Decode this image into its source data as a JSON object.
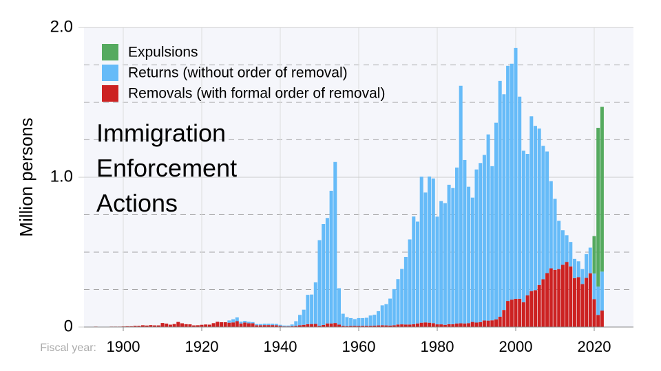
{
  "chart_data": {
    "type": "stacked_bar",
    "title": "Immigration Enforcement Actions",
    "y_label": "Million persons",
    "x_label": "Fiscal year:",
    "x": [
      1892,
      1893,
      1894,
      1895,
      1896,
      1897,
      1898,
      1899,
      1900,
      1901,
      1902,
      1903,
      1904,
      1905,
      1906,
      1907,
      1908,
      1909,
      1910,
      1911,
      1912,
      1913,
      1914,
      1915,
      1916,
      1917,
      1918,
      1919,
      1920,
      1921,
      1922,
      1923,
      1924,
      1925,
      1926,
      1927,
      1928,
      1929,
      1930,
      1931,
      1932,
      1933,
      1934,
      1935,
      1936,
      1937,
      1938,
      1939,
      1940,
      1941,
      1942,
      1943,
      1944,
      1945,
      1946,
      1947,
      1948,
      1949,
      1950,
      1951,
      1952,
      1953,
      1954,
      1955,
      1956,
      1957,
      1958,
      1959,
      1960,
      1961,
      1962,
      1963,
      1964,
      1965,
      1966,
      1967,
      1968,
      1969,
      1970,
      1971,
      1972,
      1973,
      1974,
      1975,
      1976,
      1977,
      1978,
      1979,
      1980,
      1981,
      1982,
      1983,
      1984,
      1985,
      1986,
      1987,
      1988,
      1989,
      1990,
      1991,
      1992,
      1993,
      1994,
      1995,
      1996,
      1997,
      1998,
      1999,
      2000,
      2001,
      2002,
      2003,
      2004,
      2005,
      2006,
      2007,
      2008,
      2009,
      2010,
      2011,
      2012,
      2013,
      2014,
      2015,
      2016,
      2017,
      2018,
      2019,
      2020,
      2021,
      2022
    ],
    "series": [
      {
        "name": "Expulsions",
        "color": "#55aa5f",
        "values": [
          null,
          null,
          null,
          null,
          null,
          null,
          null,
          null,
          null,
          null,
          null,
          null,
          null,
          null,
          null,
          null,
          null,
          null,
          null,
          null,
          null,
          null,
          null,
          null,
          null,
          null,
          null,
          null,
          null,
          null,
          null,
          null,
          null,
          null,
          null,
          null,
          null,
          null,
          null,
          null,
          null,
          null,
          null,
          null,
          null,
          null,
          null,
          null,
          null,
          null,
          null,
          null,
          null,
          null,
          null,
          null,
          null,
          null,
          null,
          null,
          null,
          null,
          null,
          null,
          null,
          null,
          null,
          null,
          null,
          null,
          null,
          null,
          null,
          null,
          null,
          null,
          null,
          null,
          null,
          null,
          null,
          null,
          null,
          null,
          null,
          null,
          null,
          null,
          null,
          null,
          null,
          null,
          null,
          null,
          null,
          null,
          null,
          null,
          null,
          null,
          null,
          null,
          null,
          null,
          null,
          null,
          null,
          null,
          null,
          null,
          null,
          null,
          null,
          null,
          null,
          null,
          null,
          null,
          null,
          null,
          null,
          null,
          null,
          null,
          null,
          null,
          null,
          null,
          0.25,
          1.06,
          1.1
        ]
      },
      {
        "name": "Returns (without order of removal)",
        "color": "#66bbf8",
        "values": [
          0,
          0,
          0,
          0,
          0,
          0,
          0,
          0,
          0,
          0,
          0,
          0,
          0,
          0,
          0,
          0,
          0,
          0,
          0,
          0,
          0,
          0,
          0,
          0,
          0,
          0,
          0,
          0,
          0,
          0,
          0,
          0,
          0,
          0,
          0,
          0.015,
          0.021,
          0.025,
          0.012,
          0.011,
          0.01,
          0.008,
          0.008,
          0.008,
          0.009,
          0.009,
          0.009,
          0.009,
          0.008,
          0.006,
          0.006,
          0.012,
          0.032,
          0.069,
          0.101,
          0.196,
          0.197,
          0.277,
          0.573,
          0.674,
          0.704,
          0.885,
          1.075,
          0.243,
          0.081,
          0.06,
          0.053,
          0.045,
          0.053,
          0.052,
          0.054,
          0.069,
          0.073,
          0.095,
          0.133,
          0.142,
          0.18,
          0.241,
          0.303,
          0.37,
          0.451,
          0.568,
          0.719,
          0.68,
          0.975,
          0.867,
          0.976,
          0.966,
          0.719,
          0.823,
          0.812,
          0.931,
          0.909,
          1.041,
          1.586,
          1.091,
          0.911,
          0.83,
          1.022,
          1.062,
          1.105,
          1.243,
          1.029,
          1.313,
          1.574,
          1.44,
          1.57,
          1.575,
          1.675,
          1.349,
          1.012,
          0.945,
          1.167,
          1.097,
          1.044,
          0.891,
          0.812,
          0.582,
          0.474,
          0.322,
          0.23,
          0.178,
          0.163,
          0.129,
          0.106,
          0.1,
          0.159,
          0.171,
          0.171,
          0.19,
          0.26
        ]
      },
      {
        "name": "Removals (with formal order of removal)",
        "color": "#cc2222",
        "values": [
          0.002,
          0.003,
          0.002,
          0.002,
          0.002,
          0.003,
          0.003,
          0.003,
          0.004,
          0.005,
          0.005,
          0.008,
          0.008,
          0.012,
          0.01,
          0.013,
          0.011,
          0.011,
          0.027,
          0.023,
          0.016,
          0.02,
          0.034,
          0.025,
          0.019,
          0.018,
          0.011,
          0.012,
          0.015,
          0.017,
          0.016,
          0.026,
          0.035,
          0.032,
          0.032,
          0.029,
          0.031,
          0.039,
          0.024,
          0.03,
          0.025,
          0.025,
          0.012,
          0.012,
          0.013,
          0.013,
          0.013,
          0.012,
          0.007,
          0.004,
          0.004,
          0.005,
          0.007,
          0.012,
          0.015,
          0.019,
          0.02,
          0.021,
          0.007,
          0.014,
          0.024,
          0.024,
          0.027,
          0.016,
          0.008,
          0.006,
          0.007,
          0.008,
          0.007,
          0.008,
          0.008,
          0.008,
          0.009,
          0.011,
          0.012,
          0.011,
          0.01,
          0.012,
          0.017,
          0.018,
          0.017,
          0.017,
          0.019,
          0.024,
          0.029,
          0.031,
          0.029,
          0.026,
          0.018,
          0.018,
          0.015,
          0.019,
          0.019,
          0.024,
          0.025,
          0.024,
          0.026,
          0.034,
          0.03,
          0.033,
          0.044,
          0.043,
          0.045,
          0.051,
          0.069,
          0.114,
          0.174,
          0.183,
          0.188,
          0.189,
          0.165,
          0.211,
          0.24,
          0.246,
          0.281,
          0.319,
          0.36,
          0.392,
          0.382,
          0.387,
          0.416,
          0.435,
          0.405,
          0.326,
          0.333,
          0.287,
          0.328,
          0.359,
          0.186,
          0.08,
          0.11
        ]
      }
    ],
    "xlim": [
      1890,
      2030
    ],
    "xticks": [
      1900,
      1920,
      1940,
      1960,
      1980,
      2000,
      2020
    ],
    "ylim": [
      0,
      2
    ],
    "yticks": [
      0,
      {
        "value": 1,
        "label": "1.0"
      },
      {
        "value": 2,
        "label": "2.0"
      }
    ],
    "minor_yticks": [
      0.25,
      0.5,
      0.75,
      1.25,
      1.5,
      1.75
    ],
    "legend": "upper left",
    "grid": true
  }
}
